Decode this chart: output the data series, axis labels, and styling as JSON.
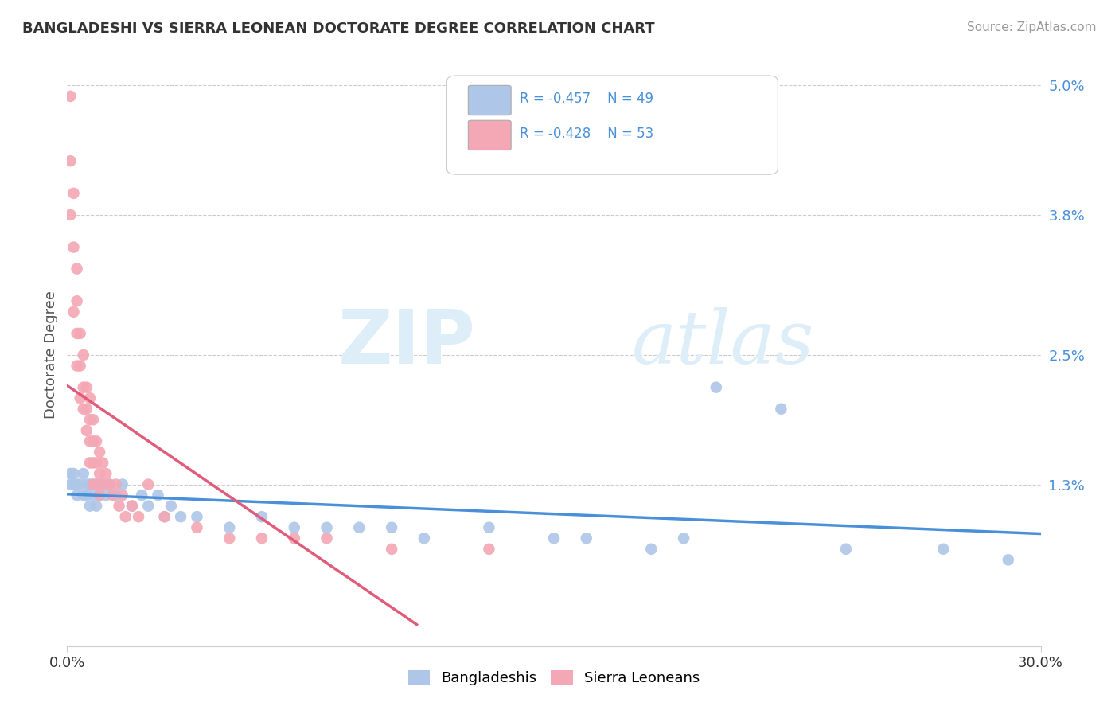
{
  "title": "BANGLADESHI VS SIERRA LEONEAN DOCTORATE DEGREE CORRELATION CHART",
  "source": "Source: ZipAtlas.com",
  "ylabel": "Doctorate Degree",
  "xlim": [
    0.0,
    0.3
  ],
  "ylim": [
    -0.002,
    0.052
  ],
  "yticks": [
    0.0,
    0.013,
    0.025,
    0.038,
    0.05
  ],
  "ytick_labels": [
    "",
    "1.3%",
    "2.5%",
    "3.8%",
    "5.0%"
  ],
  "xticks": [
    0.0,
    0.3
  ],
  "xtick_labels": [
    "0.0%",
    "30.0%"
  ],
  "blue_R": -0.457,
  "blue_N": 49,
  "pink_R": -0.428,
  "pink_N": 53,
  "blue_color": "#aec6e8",
  "pink_color": "#f4a7b4",
  "blue_line_color": "#4a90d9",
  "pink_line_color": "#e05c7a",
  "watermark_zip": "ZIP",
  "watermark_atlas": "atlas",
  "background_color": "#ffffff",
  "grid_color": "#cccccc",
  "legend_label_blue": "Bangladeshis",
  "legend_label_pink": "Sierra Leoneans",
  "blue_x": [
    0.001,
    0.001,
    0.002,
    0.002,
    0.003,
    0.003,
    0.004,
    0.005,
    0.005,
    0.006,
    0.006,
    0.007,
    0.007,
    0.008,
    0.008,
    0.009,
    0.009,
    0.01,
    0.01,
    0.011,
    0.012,
    0.013,
    0.015,
    0.017,
    0.02,
    0.023,
    0.025,
    0.028,
    0.03,
    0.032,
    0.035,
    0.04,
    0.05,
    0.06,
    0.07,
    0.08,
    0.09,
    0.1,
    0.11,
    0.13,
    0.15,
    0.16,
    0.18,
    0.19,
    0.2,
    0.22,
    0.24,
    0.27,
    0.29
  ],
  "blue_y": [
    0.014,
    0.013,
    0.014,
    0.013,
    0.013,
    0.012,
    0.013,
    0.014,
    0.012,
    0.013,
    0.012,
    0.013,
    0.011,
    0.013,
    0.012,
    0.013,
    0.011,
    0.013,
    0.012,
    0.013,
    0.012,
    0.013,
    0.012,
    0.013,
    0.011,
    0.012,
    0.011,
    0.012,
    0.01,
    0.011,
    0.01,
    0.01,
    0.009,
    0.01,
    0.009,
    0.009,
    0.009,
    0.009,
    0.008,
    0.009,
    0.008,
    0.008,
    0.007,
    0.008,
    0.022,
    0.02,
    0.007,
    0.007,
    0.006
  ],
  "pink_x": [
    0.001,
    0.001,
    0.001,
    0.002,
    0.002,
    0.002,
    0.003,
    0.003,
    0.003,
    0.003,
    0.004,
    0.004,
    0.004,
    0.005,
    0.005,
    0.005,
    0.006,
    0.006,
    0.006,
    0.007,
    0.007,
    0.007,
    0.007,
    0.008,
    0.008,
    0.008,
    0.008,
    0.009,
    0.009,
    0.009,
    0.01,
    0.01,
    0.01,
    0.011,
    0.011,
    0.012,
    0.013,
    0.014,
    0.015,
    0.016,
    0.017,
    0.018,
    0.02,
    0.022,
    0.025,
    0.03,
    0.04,
    0.05,
    0.06,
    0.07,
    0.08,
    0.1,
    0.13
  ],
  "pink_y": [
    0.049,
    0.043,
    0.038,
    0.04,
    0.035,
    0.029,
    0.033,
    0.03,
    0.027,
    0.024,
    0.027,
    0.024,
    0.021,
    0.025,
    0.022,
    0.02,
    0.022,
    0.02,
    0.018,
    0.021,
    0.019,
    0.017,
    0.015,
    0.019,
    0.017,
    0.015,
    0.013,
    0.017,
    0.015,
    0.013,
    0.016,
    0.014,
    0.012,
    0.015,
    0.013,
    0.014,
    0.013,
    0.012,
    0.013,
    0.011,
    0.012,
    0.01,
    0.011,
    0.01,
    0.013,
    0.01,
    0.009,
    0.008,
    0.008,
    0.008,
    0.008,
    0.007,
    0.007
  ],
  "blue_line_x": [
    0.0,
    0.3
  ],
  "blue_line_y": [
    0.0155,
    0.005
  ],
  "pink_line_x": [
    0.0,
    0.135
  ],
  "pink_line_y": [
    0.024,
    0.007
  ]
}
